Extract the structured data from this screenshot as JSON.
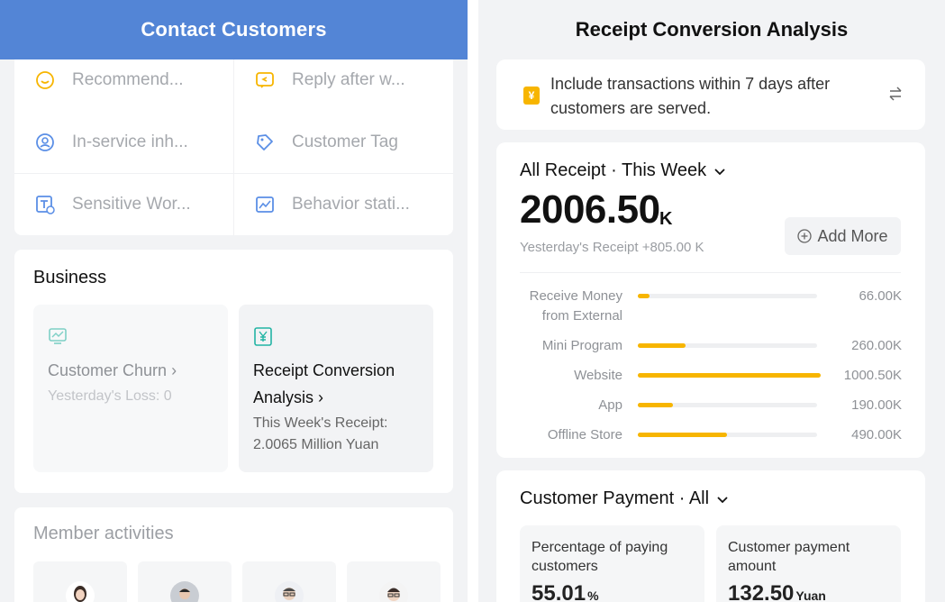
{
  "left": {
    "header_title": "Contact Customers",
    "tools": [
      {
        "label": "Recommend...",
        "icon": "smile-chat-icon",
        "color": "#f7b500"
      },
      {
        "label": "Reply after w...",
        "icon": "reply-chat-icon",
        "color": "#f7b500"
      },
      {
        "label": "In-service inh...",
        "icon": "user-transfer-icon",
        "color": "#5b8fe6"
      },
      {
        "label": "Customer Tag",
        "icon": "tag-icon",
        "color": "#5b8fe6"
      },
      {
        "label": "Sensitive Wor...",
        "icon": "text-check-icon",
        "color": "#5b8fe6"
      },
      {
        "label": "Behavior stati...",
        "icon": "chart-icon",
        "color": "#5b8fe6"
      }
    ],
    "business": {
      "title": "Business",
      "churn": {
        "name": "Customer Churn",
        "sub": "Yesterday's Loss: 0"
      },
      "receipt": {
        "name_line1": "Receipt Conversion",
        "name_line2": "Analysis",
        "sub_line1": "This Week's Receipt:",
        "sub_line2": "2.0065 Million Yuan"
      }
    },
    "members": {
      "title": "Member activities"
    }
  },
  "right": {
    "header_title": "Receipt Conversion Analysis",
    "notice": "Include transactions within 7 days after customers are served.",
    "receipt": {
      "title": "All Receipt · This Week",
      "value": "2006.50",
      "unit": "K",
      "yesterday": "Yesterday's Receipt +805.00 K",
      "add_more": "Add More"
    },
    "payment": {
      "title": "Customer Payment · All",
      "tiles": [
        {
          "label": "Percentage of paying customers",
          "value": "55.01",
          "unit": "%"
        },
        {
          "label": "Customer payment amount",
          "value": "132.50",
          "unit": "Yuan"
        }
      ]
    }
  },
  "chart_data": {
    "type": "bar",
    "orientation": "horizontal",
    "categories": [
      "Receive Money from External",
      "Mini Program",
      "Website",
      "App",
      "Offline Store"
    ],
    "values": [
      66.0,
      260.0,
      1000.5,
      190.0,
      490.0
    ],
    "value_labels": [
      "66.00K",
      "260.00K",
      "1000.50K",
      "190.00K",
      "490.00K"
    ],
    "xlim": [
      0,
      1000.5
    ],
    "bar_color": "#f7b500",
    "track_color": "#eeeff1"
  }
}
